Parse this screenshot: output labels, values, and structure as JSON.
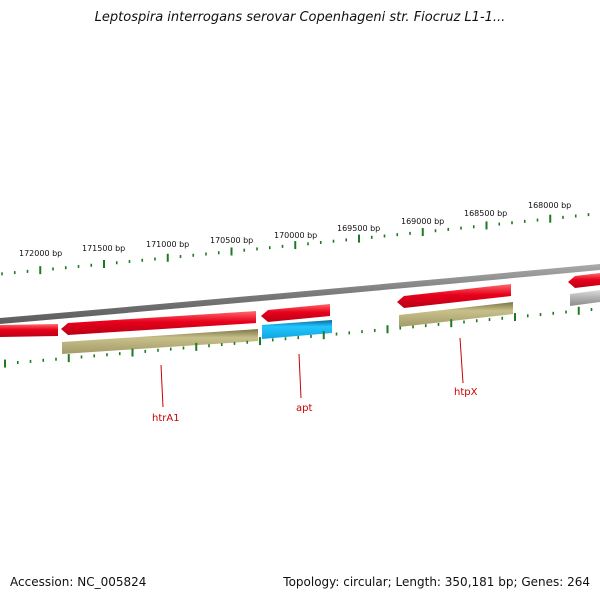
{
  "title": "Leptospira interrogans serovar Copenhageni str. Fiocruz L1-1...",
  "footer": {
    "accession": "Accession: NC_005824",
    "summary": "Topology: circular; Length: 350,181 bp; Genes: 264"
  },
  "colors": {
    "cds_forward": "#e8001c",
    "cds_reverse_tan": "#b8b07a",
    "rna_blue": "#1ab8f0",
    "other_gray": "#b0b0b0",
    "tick_green": "#1e7a1e",
    "label_red": "#cc0000",
    "backbone": "#8a8a8a"
  },
  "scale_labels": [
    "172000 bp",
    "171500 bp",
    "171000 bp",
    "170500 bp",
    "170000 bp",
    "169500 bp",
    "169000 bp",
    "168500 bp",
    "168000 bp"
  ],
  "gene_labels": [
    "htrA1",
    "apt",
    "htpX"
  ]
}
